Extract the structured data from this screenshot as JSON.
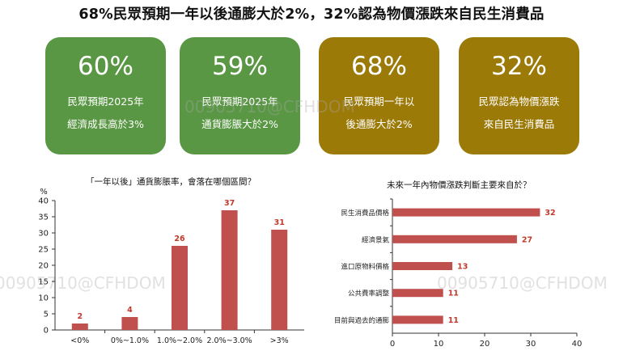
{
  "headline": "68%民眾預期一年以後通膨大於2%，32%認為物價漲跌來自民生消費品",
  "colors": {
    "green": "#5a9744",
    "gold": "#9c7a08",
    "bar": "#c0504d",
    "barLabel": "#c0392b"
  },
  "cards": [
    {
      "value": "60%",
      "line1": "民眾預期2025年",
      "line2": "經濟成長高於3%",
      "color": "green"
    },
    {
      "value": "59%",
      "line1": "民眾預期2025年",
      "line2": "通貨膨脹大於2%",
      "color": "green"
    },
    {
      "value": "68%",
      "line1": "民眾預期一年以",
      "line2": "後通膨大於2%",
      "color": "gold"
    },
    {
      "value": "32%",
      "line1": "民眾認為物價漲跌",
      "line2": "來自民生消費品",
      "color": "gold"
    }
  ],
  "watermark": "00905710@CFHDOM",
  "chart_data": [
    {
      "type": "bar",
      "title": "「一年以後」通貨膨脹率，會落在哪個區間？",
      "ylabel": "%",
      "categories": [
        "<0%",
        "0%~1.0%",
        "1.0%~2.0%",
        "2.0%~3.0%",
        ">3%"
      ],
      "values": [
        2,
        4,
        26,
        37,
        31
      ],
      "ylim": [
        0,
        40
      ],
      "yticks": [
        0,
        5,
        10,
        15,
        20,
        25,
        30,
        35,
        40
      ],
      "grid": false
    },
    {
      "type": "bar",
      "orientation": "horizontal",
      "title": "未來一年內物價漲跌判斷主要來自於？",
      "categories": [
        "民生消費品價格",
        "經濟景氣",
        "進口原物料價格",
        "公共費率調整",
        "目前與過去的通膨"
      ],
      "values": [
        32,
        27,
        13,
        11,
        11
      ],
      "xlim": [
        0,
        40
      ],
      "xticks": [
        0,
        10,
        20,
        30,
        40
      ],
      "grid": false
    }
  ]
}
